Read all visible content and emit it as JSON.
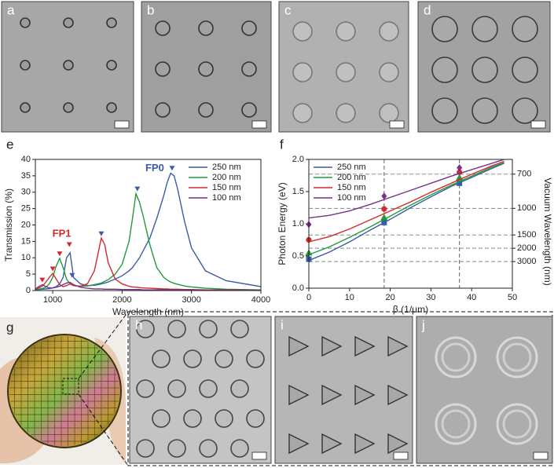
{
  "panels": [
    "a",
    "b",
    "c",
    "d",
    "g",
    "h",
    "i",
    "j"
  ],
  "chart_data": [
    {
      "type": "line",
      "panel_label": "e",
      "x_label": "Wavelength (nm)",
      "y_label": "Transmission (%)",
      "xlim": [
        750,
        4000
      ],
      "xticks": [
        1000,
        2000,
        3000,
        4000
      ],
      "ylim": [
        0,
        40
      ],
      "yticks": [
        0,
        5,
        10,
        15,
        20,
        25,
        30,
        35,
        40
      ],
      "legend": "upper right",
      "x": [
        750,
        800,
        850,
        900,
        950,
        1000,
        1050,
        1100,
        1150,
        1200,
        1250,
        1300,
        1400,
        1500,
        1600,
        1650,
        1700,
        1750,
        1800,
        1900,
        2000,
        2100,
        2150,
        2200,
        2250,
        2300,
        2400,
        2500,
        2600,
        2650,
        2700,
        2750,
        2800,
        2900,
        3000,
        3200,
        3500,
        4000
      ],
      "series": [
        {
          "name": "250 nm",
          "color": "#3b5ca6",
          "values": [
            0.2,
            0.3,
            0.4,
            0.5,
            0.6,
            0.8,
            1.2,
            2,
            4,
            10,
            11.5,
            4,
            2,
            1.5,
            1.6,
            1.8,
            2,
            2.3,
            2.6,
            3.5,
            4.5,
            6,
            7,
            8.5,
            10,
            12,
            16,
            22,
            29,
            33,
            35.8,
            35,
            31,
            21,
            13,
            6,
            3,
            1.2
          ]
        },
        {
          "name": "200 nm",
          "color": "#1f9a3e",
          "values": [
            0.2,
            0.4,
            0.6,
            1,
            2,
            4,
            7.5,
            9.8,
            7,
            3.5,
            2,
            1.5,
            1.3,
            1.4,
            1.8,
            2,
            2.3,
            2.8,
            3.3,
            5,
            8,
            15,
            22,
            29.5,
            27,
            23,
            14,
            7,
            4,
            3.2,
            2.6,
            2.2,
            1.9,
            1.4,
            1.1,
            0.7,
            0.4,
            0.2
          ]
        },
        {
          "name": "150 nm",
          "color": "#d42a2e",
          "values": [
            0.3,
            0.8,
            1.3,
            2.5,
            4,
            5.2,
            3.5,
            1.8,
            1.2,
            1.5,
            2,
            1.5,
            1.3,
            2,
            6,
            11,
            16,
            14,
            8.5,
            3.5,
            2,
            1.3,
            1.1,
            1,
            0.9,
            0.8,
            0.7,
            0.6,
            0.5,
            0.5,
            0.4,
            0.4,
            0.4,
            0.3,
            0.3,
            0.2,
            0.2,
            0.1
          ]
        },
        {
          "name": "100 nm",
          "color": "#7b2f8c",
          "values": [
            0.5,
            1.2,
            1.8,
            1.2,
            0.8,
            0.8,
            1,
            1.3,
            1.8,
            2.3,
            2.5,
            1.8,
            1,
            0.7,
            0.5,
            0.5,
            0.5,
            0.4,
            0.4,
            0.4,
            0.3,
            0.3,
            0.3,
            0.3,
            0.3,
            0.2,
            0.2,
            0.2,
            0.2,
            0.2,
            0.2,
            0.2,
            0.2,
            0.2,
            0.2,
            0.1,
            0.1,
            0.1
          ]
        }
      ],
      "peak_markers": [
        {
          "x": 2720,
          "y": 37.3,
          "color": "#3b5ca6"
        },
        {
          "x": 2220,
          "y": 31,
          "color": "#3b5ca6"
        },
        {
          "x": 1700,
          "y": 17.3,
          "color": "#3b5ca6"
        },
        {
          "x": 1280,
          "y": 4.6,
          "color": "#3b5ca6"
        },
        {
          "x": 1240,
          "y": 14,
          "color": "#d42a2e"
        },
        {
          "x": 1100,
          "y": 11.2,
          "color": "#d42a2e"
        },
        {
          "x": 1000,
          "y": 6.6,
          "color": "#d42a2e"
        },
        {
          "x": 850,
          "y": 3.2,
          "color": "#d42a2e"
        }
      ],
      "annotations": [
        {
          "text": "FP0",
          "x": 2470,
          "y": 37.2,
          "color": "#3b5ca6"
        },
        {
          "text": "FP1",
          "x": 1130,
          "y": 17.2,
          "color": "#d42a2e"
        }
      ]
    },
    {
      "type": "line",
      "panel_label": "f",
      "x_label": "β (1/μm)",
      "y_label": "Photon Energy (eV)",
      "y2_label": "Vacuum Wavelength (nm)",
      "xlim": [
        0,
        50
      ],
      "xticks": [
        0,
        10,
        20,
        30,
        40,
        50
      ],
      "ylim": [
        0,
        2
      ],
      "yticks": [
        {
          "value": 0,
          "label": "0.0"
        },
        0.5,
        {
          "value": 1,
          "label": "1.0"
        },
        1.5,
        {
          "value": 2,
          "label": "2.0"
        }
      ],
      "y2scale": "reciprocal",
      "y2ticks": [
        700,
        1000,
        1500,
        2000,
        3000
      ],
      "y2grid": true,
      "legend": "upper left",
      "x": [
        0,
        5,
        10,
        15,
        20,
        25,
        30,
        35,
        40,
        45,
        48
      ],
      "point_x": [
        0,
        18.5,
        37
      ],
      "series": [
        {
          "name": "250 nm",
          "color": "#3b5ca6",
          "marker": "square",
          "values": [
            0.43,
            0.56,
            0.72,
            0.9,
            1.07,
            1.25,
            1.42,
            1.58,
            1.72,
            1.86,
            1.94
          ],
          "points": [
            0.45,
            1.02,
            1.63
          ]
        },
        {
          "name": "200 nm",
          "color": "#1f9a3e",
          "marker": "triangle",
          "values": [
            0.52,
            0.64,
            0.79,
            0.95,
            1.12,
            1.29,
            1.45,
            1.6,
            1.74,
            1.88,
            1.95
          ],
          "points": [
            0.55,
            1.1,
            1.72
          ]
        },
        {
          "name": "150 nm",
          "color": "#d42a2e",
          "marker": "circle",
          "values": [
            0.72,
            0.8,
            0.92,
            1.06,
            1.2,
            1.34,
            1.49,
            1.63,
            1.77,
            1.9,
            1.97
          ],
          "points": [
            0.75,
            1.23,
            1.8
          ]
        },
        {
          "name": "100 nm",
          "color": "#7b2f8c",
          "marker": "diamond",
          "values": [
            1.09,
            1.13,
            1.2,
            1.3,
            1.41,
            1.52,
            1.63,
            1.74,
            1.84,
            1.94,
            2.0
          ],
          "points": [
            0.99,
            1.43,
            1.87
          ]
        }
      ]
    }
  ]
}
